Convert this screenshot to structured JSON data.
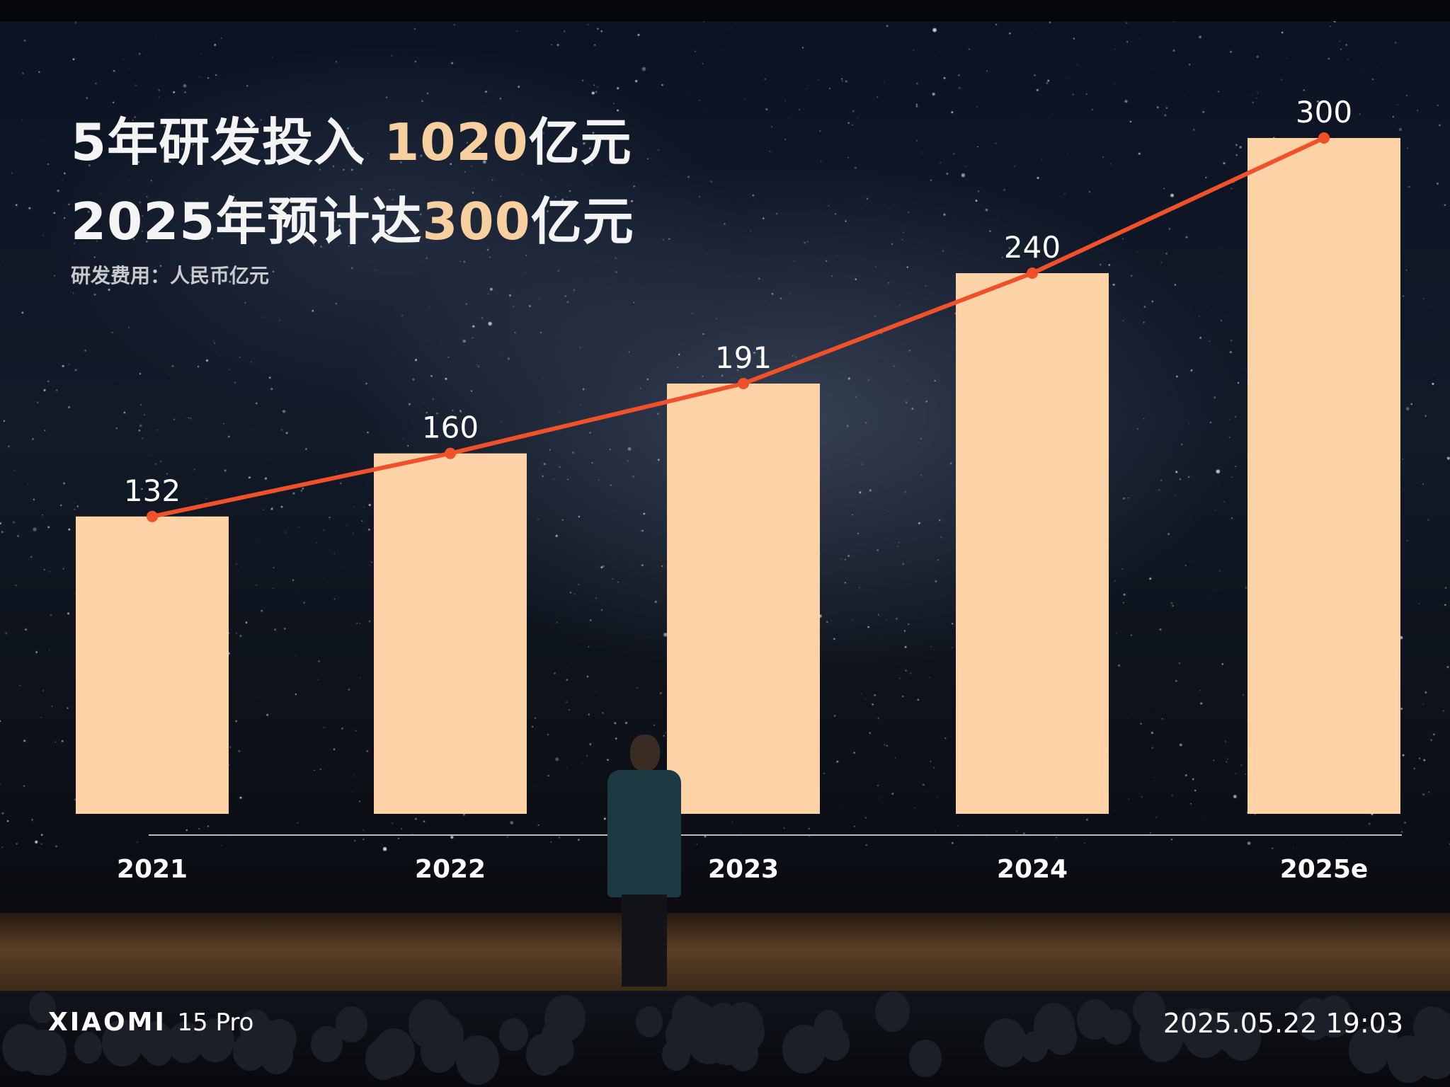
{
  "slide": {
    "title_line1_prefix": "5年研发投入",
    "title_line1_highlight": "1020",
    "title_line1_suffix": "亿元",
    "title_line2_prefix": "2025年预计达",
    "title_line2_highlight": "300",
    "title_line2_suffix": "亿元",
    "unit_label": "研发费用：人民币亿元",
    "highlight_color": "#f8cf9e"
  },
  "chart_data": {
    "type": "bar",
    "categories": [
      "2021",
      "2022",
      "2023",
      "2024",
      "2025e"
    ],
    "values": [
      132,
      160,
      191,
      240,
      300
    ],
    "ylim": [
      0,
      300
    ],
    "overlay_line": true,
    "data_labels": true,
    "grid": false,
    "bar_color": "#fdd2a6",
    "line_color": "#f0512a"
  },
  "watermark": {
    "brand": "XIAOMI",
    "model": "15 Pro",
    "datetime": "2025.05.22 19:03"
  }
}
